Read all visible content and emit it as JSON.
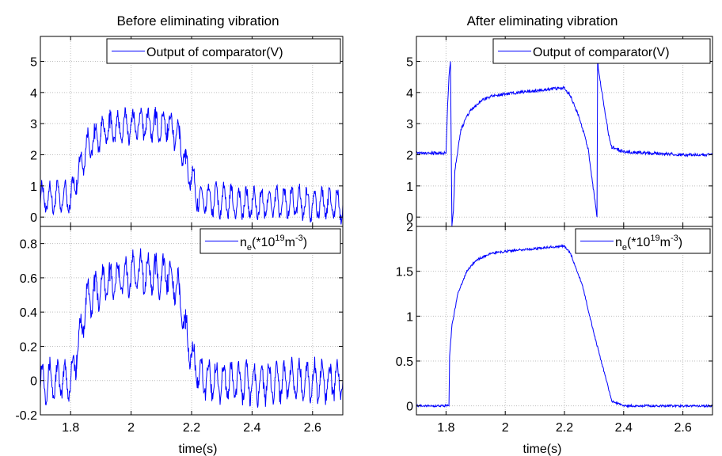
{
  "colors": {
    "series": "#0000ff",
    "axis": "#000000",
    "grid": "#bfbfbf",
    "background": "#ffffff"
  },
  "chart_data": [
    {
      "type": "line",
      "title": "Before eliminating vibration",
      "xlabel": "",
      "xlim": [
        1.7,
        2.7
      ],
      "ylim": [
        -0.3,
        5.8
      ],
      "xticks": [
        1.8,
        2.0,
        2.2,
        2.4,
        2.6
      ],
      "yticks": [
        0,
        1,
        2,
        3,
        4,
        5
      ],
      "ytick_labels": [
        "0",
        "1",
        "2",
        "3",
        "4",
        "5"
      ],
      "grid": true,
      "legend_position": "top-right",
      "series": [
        {
          "name": "Output of comparator(V)",
          "x": [
            1.7,
            1.75,
            1.8,
            1.82,
            1.85,
            1.88,
            1.9,
            1.93,
            1.96,
            2.0,
            2.04,
            2.08,
            2.1,
            2.12,
            2.14,
            2.16,
            2.18,
            2.2,
            2.22,
            2.3,
            2.4,
            2.5,
            2.6,
            2.7
          ],
          "y": [
            0.6,
            0.6,
            0.6,
            1.2,
            2.2,
            2.5,
            2.7,
            2.85,
            2.85,
            2.95,
            3.0,
            2.95,
            2.9,
            3.0,
            2.8,
            2.5,
            1.7,
            1.3,
            0.6,
            0.5,
            0.4,
            0.45,
            0.45,
            0.4
          ],
          "oscillation_amplitude": 0.45
        }
      ]
    },
    {
      "type": "line",
      "xlabel": "time(s)",
      "xlim": [
        1.7,
        2.7
      ],
      "ylim": [
        -0.2,
        0.9
      ],
      "xticks": [
        1.8,
        2.0,
        2.2,
        2.4,
        2.6
      ],
      "xtick_labels": [
        "1.8",
        "2",
        "2.2",
        "2.4",
        "2.6"
      ],
      "yticks": [
        -0.2,
        0,
        0.2,
        0.4,
        0.6,
        0.8
      ],
      "ytick_labels": [
        "-0.2",
        "0",
        "0.2",
        "0.4",
        "0.6",
        "0.8"
      ],
      "grid": true,
      "legend_position": "top-right",
      "legend_label": {
        "base": "n",
        "sub": "e",
        "mid": "(*10",
        "sup1": "19",
        "mid2": "m",
        "sup2": "-3",
        "end": ")"
      },
      "series": [
        {
          "x": [
            1.7,
            1.75,
            1.8,
            1.82,
            1.85,
            1.88,
            1.9,
            1.93,
            1.96,
            2.0,
            2.04,
            2.08,
            2.1,
            2.12,
            2.14,
            2.16,
            2.18,
            2.2,
            2.22,
            2.3,
            2.4,
            2.5,
            2.6,
            2.7
          ],
          "y": [
            0.0,
            0.0,
            0.0,
            0.15,
            0.45,
            0.52,
            0.55,
            0.58,
            0.6,
            0.62,
            0.63,
            0.62,
            0.61,
            0.62,
            0.58,
            0.5,
            0.3,
            0.15,
            0.02,
            0.0,
            -0.02,
            0.0,
            0.0,
            0.0
          ],
          "oscillation_amplitude": 0.1
        }
      ]
    },
    {
      "type": "line",
      "title": "After eliminating vibration",
      "xlabel": "",
      "xlim": [
        1.7,
        2.7
      ],
      "ylim": [
        -0.3,
        5.8
      ],
      "xticks": [
        1.8,
        2.0,
        2.2,
        2.4,
        2.6
      ],
      "yticks": [
        0,
        1,
        2,
        3,
        4,
        5
      ],
      "ytick_labels": [
        "0",
        "1",
        "2",
        "3",
        "4",
        "5"
      ],
      "grid": true,
      "legend_position": "top-right",
      "series": [
        {
          "name": "Output of comparator(V)",
          "x": [
            1.7,
            1.78,
            1.8,
            1.805,
            1.81,
            1.815,
            1.82,
            1.825,
            1.83,
            1.85,
            1.88,
            1.92,
            1.96,
            2.0,
            2.05,
            2.1,
            2.15,
            2.2,
            2.22,
            2.25,
            2.28,
            2.31,
            2.312,
            2.315,
            2.33,
            2.35,
            2.36,
            2.4,
            2.5,
            2.6,
            2.7
          ],
          "y": [
            2.05,
            2.05,
            2.05,
            3.5,
            4.5,
            5.0,
            -0.3,
            0.2,
            1.5,
            2.8,
            3.4,
            3.75,
            3.9,
            3.95,
            4.0,
            4.05,
            4.1,
            4.15,
            3.9,
            3.2,
            2.2,
            0.0,
            5.2,
            4.7,
            3.8,
            2.6,
            2.25,
            2.1,
            2.05,
            2.0,
            2.0
          ],
          "oscillation_amplitude": 0.05
        }
      ]
    },
    {
      "type": "line",
      "xlabel": "time(s)",
      "xlim": [
        1.7,
        2.7
      ],
      "ylim": [
        -0.1,
        2.0
      ],
      "xticks": [
        1.8,
        2.0,
        2.2,
        2.4,
        2.6
      ],
      "xtick_labels": [
        "1.8",
        "2",
        "2.2",
        "2.4",
        "2.6"
      ],
      "yticks": [
        0,
        0.5,
        1,
        1.5,
        2
      ],
      "ytick_labels": [
        "0",
        "0.5",
        "1",
        "1.5",
        "2"
      ],
      "grid": true,
      "legend_position": "top-right",
      "legend_label": {
        "base": "n",
        "sub": "e",
        "mid": "(*10",
        "sup1": "19",
        "mid2": "m",
        "sup2": "-3",
        "end": ")"
      },
      "series": [
        {
          "x": [
            1.7,
            1.78,
            1.81,
            1.812,
            1.82,
            1.84,
            1.87,
            1.9,
            1.95,
            2.0,
            2.05,
            2.1,
            2.15,
            2.2,
            2.22,
            2.26,
            2.3,
            2.34,
            2.36,
            2.4,
            2.5,
            2.6,
            2.7
          ],
          "y": [
            0.0,
            0.0,
            0.0,
            0.55,
            0.9,
            1.25,
            1.5,
            1.62,
            1.7,
            1.72,
            1.74,
            1.75,
            1.77,
            1.78,
            1.7,
            1.35,
            0.8,
            0.3,
            0.05,
            0.0,
            0.0,
            0.0,
            0.0
          ],
          "oscillation_amplitude": 0.012
        }
      ]
    }
  ]
}
